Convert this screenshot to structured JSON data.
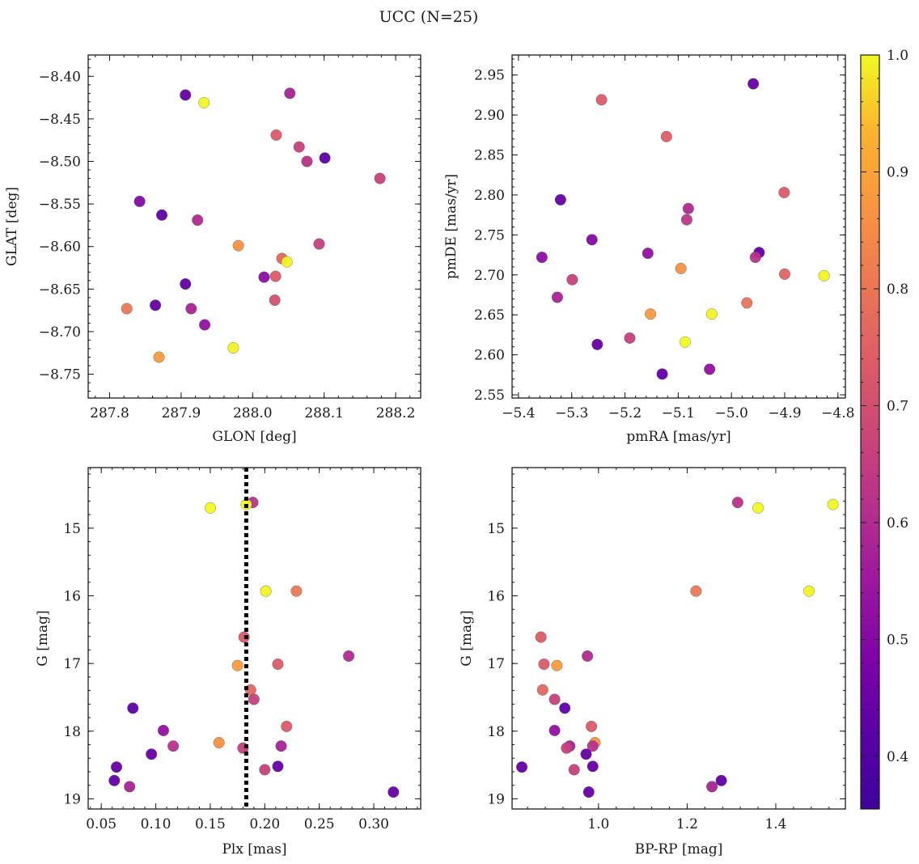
{
  "title": "UCC (N=25)",
  "colormap": {
    "name": "plasma",
    "range": [
      0.355,
      1.0
    ],
    "ticks": [
      0.4,
      0.5,
      0.6,
      0.7,
      0.8,
      0.9,
      1.0
    ],
    "tick_labels": [
      "0.4",
      "0.5",
      "0.6",
      "0.7",
      "0.8",
      "0.9",
      "1.0"
    ]
  },
  "chart_data": [
    {
      "type": "scatter",
      "xlabel": "GLON [deg]",
      "ylabel": "GLAT [deg]",
      "xlim": [
        287.77,
        288.235
      ],
      "ylim": [
        -8.778,
        -8.375
      ],
      "y_inverted": false,
      "xticks": [
        287.8,
        287.9,
        288.0,
        288.1,
        288.2
      ],
      "xtick_labels": [
        "287.8",
        "287.9",
        "288.0",
        "288.1",
        "288.2"
      ],
      "yticks": [
        -8.4,
        -8.45,
        -8.5,
        -8.55,
        -8.6,
        -8.65,
        -8.7,
        -8.75
      ],
      "ytick_labels": [
        "−8.40",
        "−8.45",
        "−8.50",
        "−8.55",
        "−8.60",
        "−8.65",
        "−8.70",
        "−8.75"
      ],
      "xminor_step": 0.02,
      "yminor_step": 0.01,
      "points": [
        {
          "x": 287.906,
          "y": -8.422,
          "c": 0.38
        },
        {
          "x": 287.932,
          "y": -8.431,
          "c": 1.0
        },
        {
          "x": 288.052,
          "y": -8.42,
          "c": 0.52
        },
        {
          "x": 288.033,
          "y": -8.469,
          "c": 0.67
        },
        {
          "x": 288.065,
          "y": -8.483,
          "c": 0.6
        },
        {
          "x": 288.076,
          "y": -8.5,
          "c": 0.56
        },
        {
          "x": 288.101,
          "y": -8.496,
          "c": 0.36
        },
        {
          "x": 288.178,
          "y": -8.52,
          "c": 0.6
        },
        {
          "x": 287.842,
          "y": -8.547,
          "c": 0.44
        },
        {
          "x": 287.873,
          "y": -8.563,
          "c": 0.37
        },
        {
          "x": 287.923,
          "y": -8.569,
          "c": 0.54
        },
        {
          "x": 287.98,
          "y": -8.599,
          "c": 0.8
        },
        {
          "x": 288.093,
          "y": -8.597,
          "c": 0.6
        },
        {
          "x": 288.041,
          "y": -8.614,
          "c": 0.7
        },
        {
          "x": 288.048,
          "y": -8.618,
          "c": 0.99
        },
        {
          "x": 288.016,
          "y": -8.636,
          "c": 0.46
        },
        {
          "x": 288.032,
          "y": -8.635,
          "c": 0.67
        },
        {
          "x": 287.906,
          "y": -8.644,
          "c": 0.37
        },
        {
          "x": 288.031,
          "y": -8.663,
          "c": 0.64
        },
        {
          "x": 287.824,
          "y": -8.673,
          "c": 0.74
        },
        {
          "x": 287.864,
          "y": -8.669,
          "c": 0.38
        },
        {
          "x": 287.914,
          "y": -8.673,
          "c": 0.52
        },
        {
          "x": 287.933,
          "y": -8.692,
          "c": 0.47
        },
        {
          "x": 287.973,
          "y": -8.719,
          "c": 0.99
        },
        {
          "x": 287.869,
          "y": -8.73,
          "c": 0.82
        }
      ]
    },
    {
      "type": "scatter",
      "xlabel": "pmRA [mas/yr]",
      "ylabel": "pmDE [mas/yr]",
      "xlim": [
        -5.412,
        -4.786
      ],
      "ylim": [
        2.546,
        2.975
      ],
      "y_inverted": false,
      "xticks": [
        -5.4,
        -5.3,
        -5.2,
        -5.1,
        -5.0,
        -4.9,
        -4.8
      ],
      "xtick_labels": [
        "−5.4",
        "−5.3",
        "−5.2",
        "−5.1",
        "−5.0",
        "−4.9",
        "−4.8"
      ],
      "yticks": [
        2.55,
        2.6,
        2.65,
        2.7,
        2.75,
        2.8,
        2.85,
        2.9,
        2.95
      ],
      "ytick_labels": [
        "2.55",
        "2.60",
        "2.65",
        "2.70",
        "2.75",
        "2.80",
        "2.85",
        "2.90",
        "2.95"
      ],
      "xminor_step": 0.02,
      "yminor_step": 0.01,
      "points": [
        {
          "x": -4.959,
          "y": 2.939,
          "c": 0.38
        },
        {
          "x": -5.244,
          "y": 2.919,
          "c": 0.67
        },
        {
          "x": -5.122,
          "y": 2.873,
          "c": 0.68
        },
        {
          "x": -4.901,
          "y": 2.803,
          "c": 0.67
        },
        {
          "x": -5.321,
          "y": 2.794,
          "c": 0.38
        },
        {
          "x": -5.081,
          "y": 2.783,
          "c": 0.54
        },
        {
          "x": -5.084,
          "y": 2.769,
          "c": 0.57
        },
        {
          "x": -5.262,
          "y": 2.744,
          "c": 0.44
        },
        {
          "x": -5.157,
          "y": 2.727,
          "c": 0.47
        },
        {
          "x": -4.948,
          "y": 2.728,
          "c": 0.37
        },
        {
          "x": -5.356,
          "y": 2.722,
          "c": 0.46
        },
        {
          "x": -4.955,
          "y": 2.722,
          "c": 0.56
        },
        {
          "x": -5.095,
          "y": 2.708,
          "c": 0.8
        },
        {
          "x": -4.9,
          "y": 2.701,
          "c": 0.69
        },
        {
          "x": -4.826,
          "y": 2.699,
          "c": 0.99
        },
        {
          "x": -5.299,
          "y": 2.694,
          "c": 0.6
        },
        {
          "x": -5.327,
          "y": 2.672,
          "c": 0.52
        },
        {
          "x": -4.971,
          "y": 2.665,
          "c": 0.73
        },
        {
          "x": -5.152,
          "y": 2.651,
          "c": 0.82
        },
        {
          "x": -5.037,
          "y": 2.651,
          "c": 0.99
        },
        {
          "x": -5.191,
          "y": 2.621,
          "c": 0.6
        },
        {
          "x": -5.087,
          "y": 2.616,
          "c": 1.0
        },
        {
          "x": -5.252,
          "y": 2.613,
          "c": 0.38
        },
        {
          "x": -5.041,
          "y": 2.582,
          "c": 0.47
        },
        {
          "x": -5.13,
          "y": 2.576,
          "c": 0.37
        }
      ]
    },
    {
      "type": "scatter",
      "xlabel": "Plx [mas]",
      "ylabel": "G [mag]",
      "xlim": [
        0.038,
        0.343
      ],
      "ylim": [
        14.105,
        19.15
      ],
      "y_inverted": true,
      "xticks": [
        0.05,
        0.1,
        0.15,
        0.2,
        0.25,
        0.3
      ],
      "xtick_labels": [
        "0.05",
        "0.10",
        "0.15",
        "0.20",
        "0.25",
        "0.30"
      ],
      "yticks": [
        15,
        16,
        17,
        18,
        19
      ],
      "ytick_labels": [
        "15",
        "16",
        "17",
        "18",
        "19"
      ],
      "xminor_step": 0.01,
      "yminor_step": 0.2,
      "vline": {
        "x": 0.183,
        "style": "dotted"
      },
      "points": [
        {
          "x": 0.189,
          "y": 14.62,
          "c": 0.56
        },
        {
          "x": 0.183,
          "y": 14.65,
          "c": 1.0
        },
        {
          "x": 0.15,
          "y": 14.7,
          "c": 1.0
        },
        {
          "x": 0.201,
          "y": 15.93,
          "c": 0.99
        },
        {
          "x": 0.229,
          "y": 15.93,
          "c": 0.74
        },
        {
          "x": 0.181,
          "y": 16.61,
          "c": 0.67
        },
        {
          "x": 0.277,
          "y": 16.89,
          "c": 0.54
        },
        {
          "x": 0.175,
          "y": 17.03,
          "c": 0.82
        },
        {
          "x": 0.212,
          "y": 17.01,
          "c": 0.67
        },
        {
          "x": 0.187,
          "y": 17.39,
          "c": 0.7
        },
        {
          "x": 0.19,
          "y": 17.53,
          "c": 0.6
        },
        {
          "x": 0.079,
          "y": 17.66,
          "c": 0.37
        },
        {
          "x": 0.22,
          "y": 17.93,
          "c": 0.67
        },
        {
          "x": 0.107,
          "y": 17.99,
          "c": 0.47
        },
        {
          "x": 0.158,
          "y": 18.17,
          "c": 0.8
        },
        {
          "x": 0.116,
          "y": 18.22,
          "c": 0.56
        },
        {
          "x": 0.215,
          "y": 18.22,
          "c": 0.52
        },
        {
          "x": 0.18,
          "y": 18.25,
          "c": 0.6
        },
        {
          "x": 0.096,
          "y": 18.34,
          "c": 0.38
        },
        {
          "x": 0.064,
          "y": 18.53,
          "c": 0.38
        },
        {
          "x": 0.212,
          "y": 18.52,
          "c": 0.38
        },
        {
          "x": 0.2,
          "y": 18.57,
          "c": 0.6
        },
        {
          "x": 0.062,
          "y": 18.73,
          "c": 0.37
        },
        {
          "x": 0.076,
          "y": 18.82,
          "c": 0.52
        },
        {
          "x": 0.318,
          "y": 18.9,
          "c": 0.38
        }
      ]
    },
    {
      "type": "scatter",
      "xlabel": "BP-RP [mag]",
      "ylabel": "G [mag]",
      "xlim": [
        0.805,
        1.557
      ],
      "ylim": [
        14.105,
        19.15
      ],
      "y_inverted": true,
      "xticks": [
        1.0,
        1.2,
        1.4
      ],
      "xtick_labels": [
        "1.0",
        "1.2",
        "1.4"
      ],
      "yticks": [
        15,
        16,
        17,
        18,
        19
      ],
      "ytick_labels": [
        "15",
        "16",
        "17",
        "18",
        "19"
      ],
      "xminor_step": 0.04,
      "yminor_step": 0.2,
      "points": [
        {
          "x": 1.314,
          "y": 14.62,
          "c": 0.56
        },
        {
          "x": 1.529,
          "y": 14.65,
          "c": 1.0
        },
        {
          "x": 1.36,
          "y": 14.7,
          "c": 1.0
        },
        {
          "x": 1.22,
          "y": 15.93,
          "c": 0.74
        },
        {
          "x": 1.475,
          "y": 15.93,
          "c": 0.99
        },
        {
          "x": 0.87,
          "y": 16.61,
          "c": 0.67
        },
        {
          "x": 0.975,
          "y": 16.89,
          "c": 0.54
        },
        {
          "x": 0.877,
          "y": 17.01,
          "c": 0.67
        },
        {
          "x": 0.906,
          "y": 17.03,
          "c": 0.82
        },
        {
          "x": 0.874,
          "y": 17.39,
          "c": 0.7
        },
        {
          "x": 0.901,
          "y": 17.53,
          "c": 0.6
        },
        {
          "x": 0.924,
          "y": 17.66,
          "c": 0.37
        },
        {
          "x": 0.984,
          "y": 17.93,
          "c": 0.67
        },
        {
          "x": 0.901,
          "y": 17.99,
          "c": 0.47
        },
        {
          "x": 0.992,
          "y": 18.17,
          "c": 0.8
        },
        {
          "x": 0.987,
          "y": 18.22,
          "c": 0.56
        },
        {
          "x": 0.935,
          "y": 18.22,
          "c": 0.52
        },
        {
          "x": 0.928,
          "y": 18.25,
          "c": 0.6
        },
        {
          "x": 0.972,
          "y": 18.34,
          "c": 0.38
        },
        {
          "x": 0.987,
          "y": 18.52,
          "c": 0.38
        },
        {
          "x": 0.827,
          "y": 18.53,
          "c": 0.38
        },
        {
          "x": 0.945,
          "y": 18.57,
          "c": 0.6
        },
        {
          "x": 1.277,
          "y": 18.73,
          "c": 0.37
        },
        {
          "x": 1.256,
          "y": 18.82,
          "c": 0.52
        },
        {
          "x": 0.978,
          "y": 18.9,
          "c": 0.38
        }
      ]
    }
  ]
}
